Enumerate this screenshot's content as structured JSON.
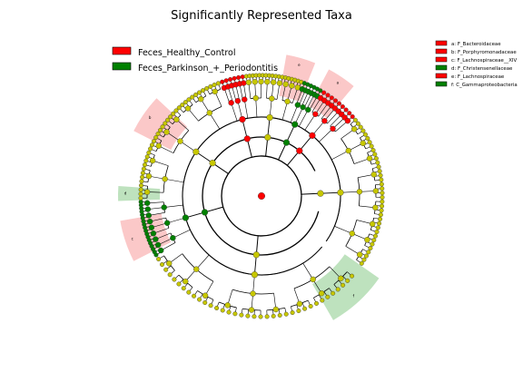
{
  "chart_data": {
    "type": "cladogram",
    "title": "Significantly Represented Taxa",
    "groups": [
      {
        "name": "Feces_Healthy_Control",
        "color": "#ff0000",
        "shade": "#f9b6b6"
      },
      {
        "name": "Feces_Parkinson_+_Periodontitis",
        "color": "#008000",
        "shade": "#a8d8a8"
      }
    ],
    "node_color": "#c7c700",
    "taxa": [
      {
        "key": "a",
        "label": "a: F_Bacteroidaceae",
        "group": "Feces_Healthy_Control"
      },
      {
        "key": "b",
        "label": "b: F_Porphyromonadaceae",
        "group": "Feces_Healthy_Control"
      },
      {
        "key": "c",
        "label": "c: F_Lachnospiraceae__XIV",
        "group": "Feces_Healthy_Control"
      },
      {
        "key": "d",
        "label": "d: F_Christensenellaceae",
        "group": "Feces_Parkinson_+_Periodontitis"
      },
      {
        "key": "e",
        "label": "e: F_Lachnospiraceae",
        "group": "Feces_Healthy_Control"
      },
      {
        "key": "f",
        "label": "f: C_Gammaproteobacteria",
        "group": "Feces_Parkinson_+_Periodontitis"
      }
    ],
    "tree": {
      "root_group": "Feces_Healthy_Control",
      "levels": 6,
      "branches": [
        {
          "start": 40,
          "end": 150,
          "group": null,
          "depth": 5
        },
        {
          "start": 150,
          "end": 178,
          "group": "Feces_Parkinson_+_Periodontitis",
          "depth": 4
        },
        {
          "start": 178,
          "end": 250,
          "group": null,
          "depth": 5
        },
        {
          "start": 250,
          "end": 262,
          "group": "Feces_Healthy_Control",
          "depth": 4
        },
        {
          "start": 262,
          "end": 290,
          "group": null,
          "depth": 5
        },
        {
          "start": 290,
          "end": 300,
          "group": "Feces_Parkinson_+_Periodontitis",
          "depth": 3
        },
        {
          "start": 300,
          "end": 320,
          "group": "Feces_Healthy_Control",
          "depth": 5
        },
        {
          "start": 320,
          "end": 395,
          "group": null,
          "depth": 5
        }
      ],
      "highlights": [
        {
          "key": "e",
          "start": 280,
          "end": 292,
          "group": "Feces_Healthy_Control"
        },
        {
          "key": "a",
          "start": 298,
          "end": 310,
          "group": "Feces_Healthy_Control"
        },
        {
          "key": "b",
          "start": 207,
          "end": 223,
          "group": "Feces_Healthy_Control"
        },
        {
          "key": "c",
          "start": 153,
          "end": 170,
          "group": "Feces_Healthy_Control"
        },
        {
          "key": "d",
          "start": 178,
          "end": 184,
          "group": "Feces_Parkinson_+_Periodontitis"
        },
        {
          "key": "f",
          "start": 35,
          "end": 60,
          "group": "Feces_Parkinson_+_Periodontitis"
        }
      ]
    }
  }
}
